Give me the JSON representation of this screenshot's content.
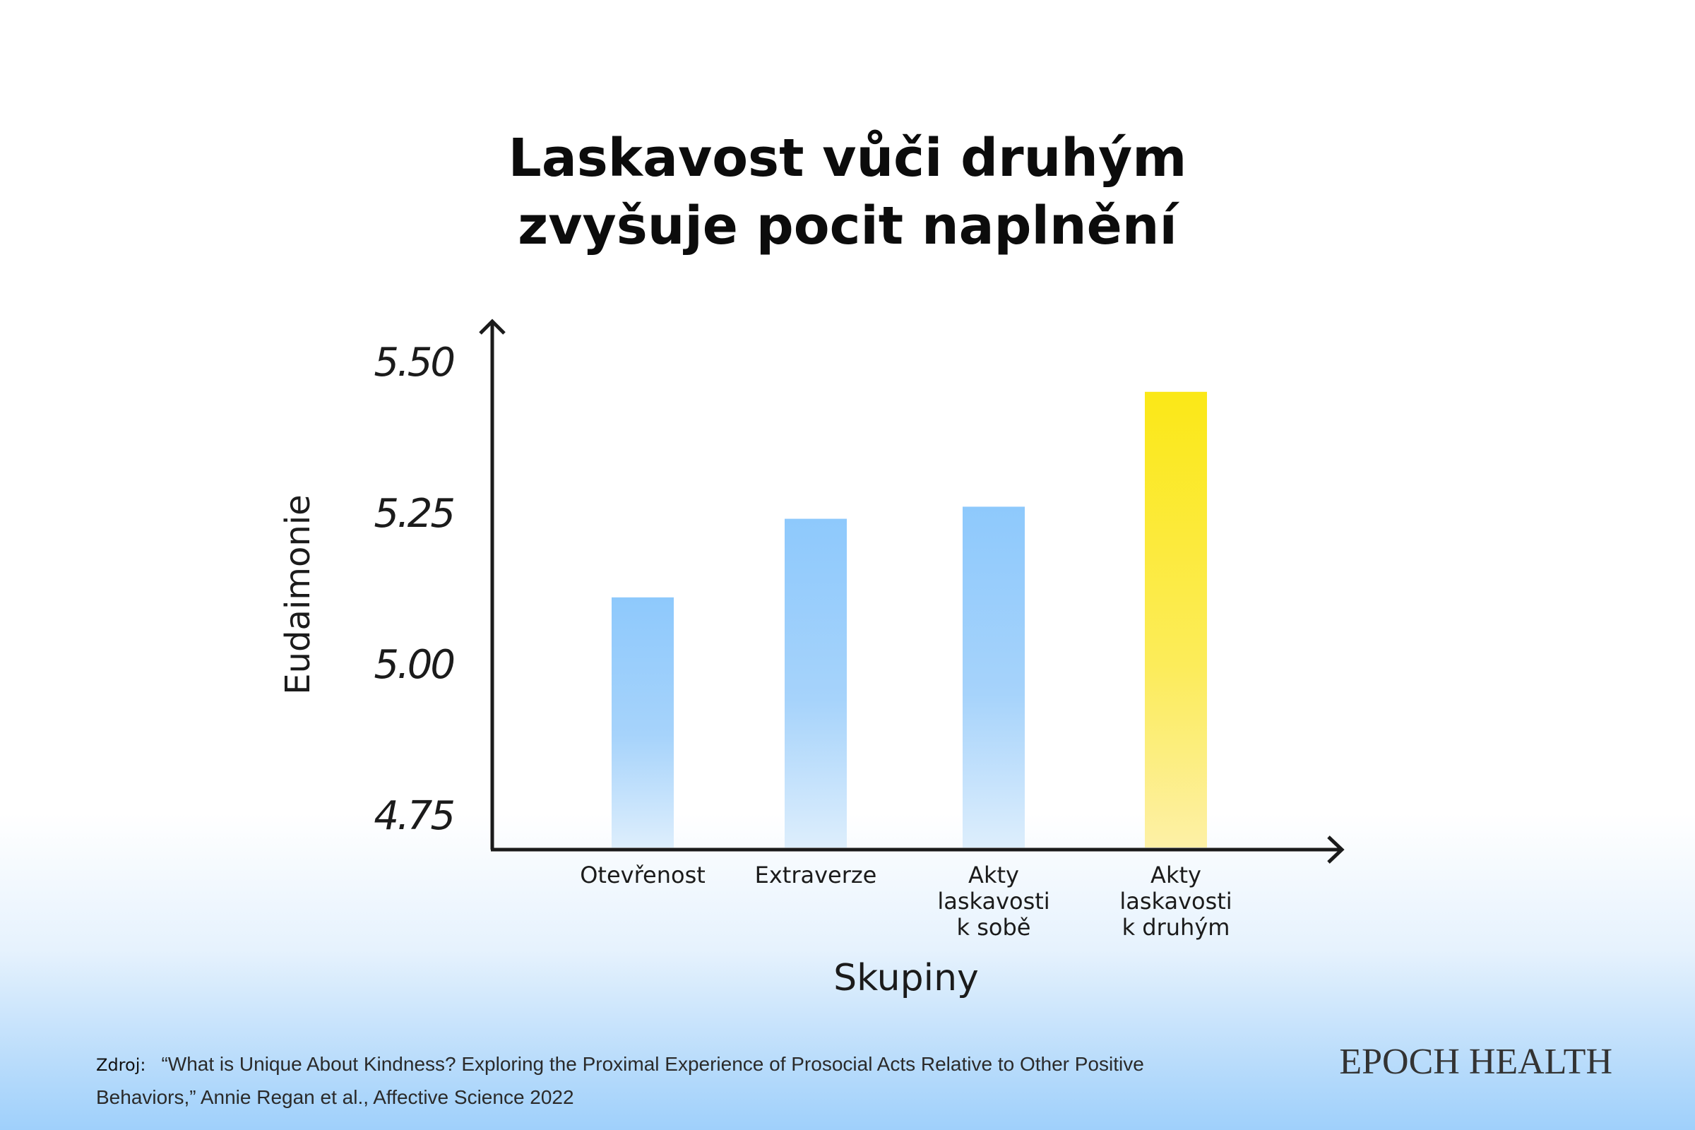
{
  "chart_data": {
    "type": "bar",
    "title_lines": [
      "Laskavost vůči druhým",
      "zvyšuje pocit naplnění"
    ],
    "xlabel": "Skupiny",
    "ylabel": "Eudaimonie",
    "categories": [
      [
        "Otevřenost"
      ],
      [
        "Extraverze"
      ],
      [
        "Akty",
        "laskavosti",
        "k sobě"
      ],
      [
        "Akty",
        "laskavosti",
        "k druhým"
      ]
    ],
    "values": [
      5.11,
      5.24,
      5.26,
      5.45
    ],
    "yticks": [
      "5.50",
      "5.25",
      "5.00",
      "4.75"
    ],
    "ytick_values": [
      5.5,
      5.25,
      5.0,
      4.75
    ],
    "ylim": [
      4.75,
      5.55
    ],
    "grid": false,
    "colors": {
      "bars": "#8ec9fc",
      "highlight": "#fbe817"
    },
    "highlight_index": 3
  },
  "footer": {
    "source_label": "Zdroj:",
    "source_text": "“What is Unique About Kindness? Exploring the Proximal Experience of Prosocial Acts Relative to Other Positive Behaviors,” Annie Regan et al., Affective Science 2022"
  },
  "brand": "EPOCH HEALTH"
}
